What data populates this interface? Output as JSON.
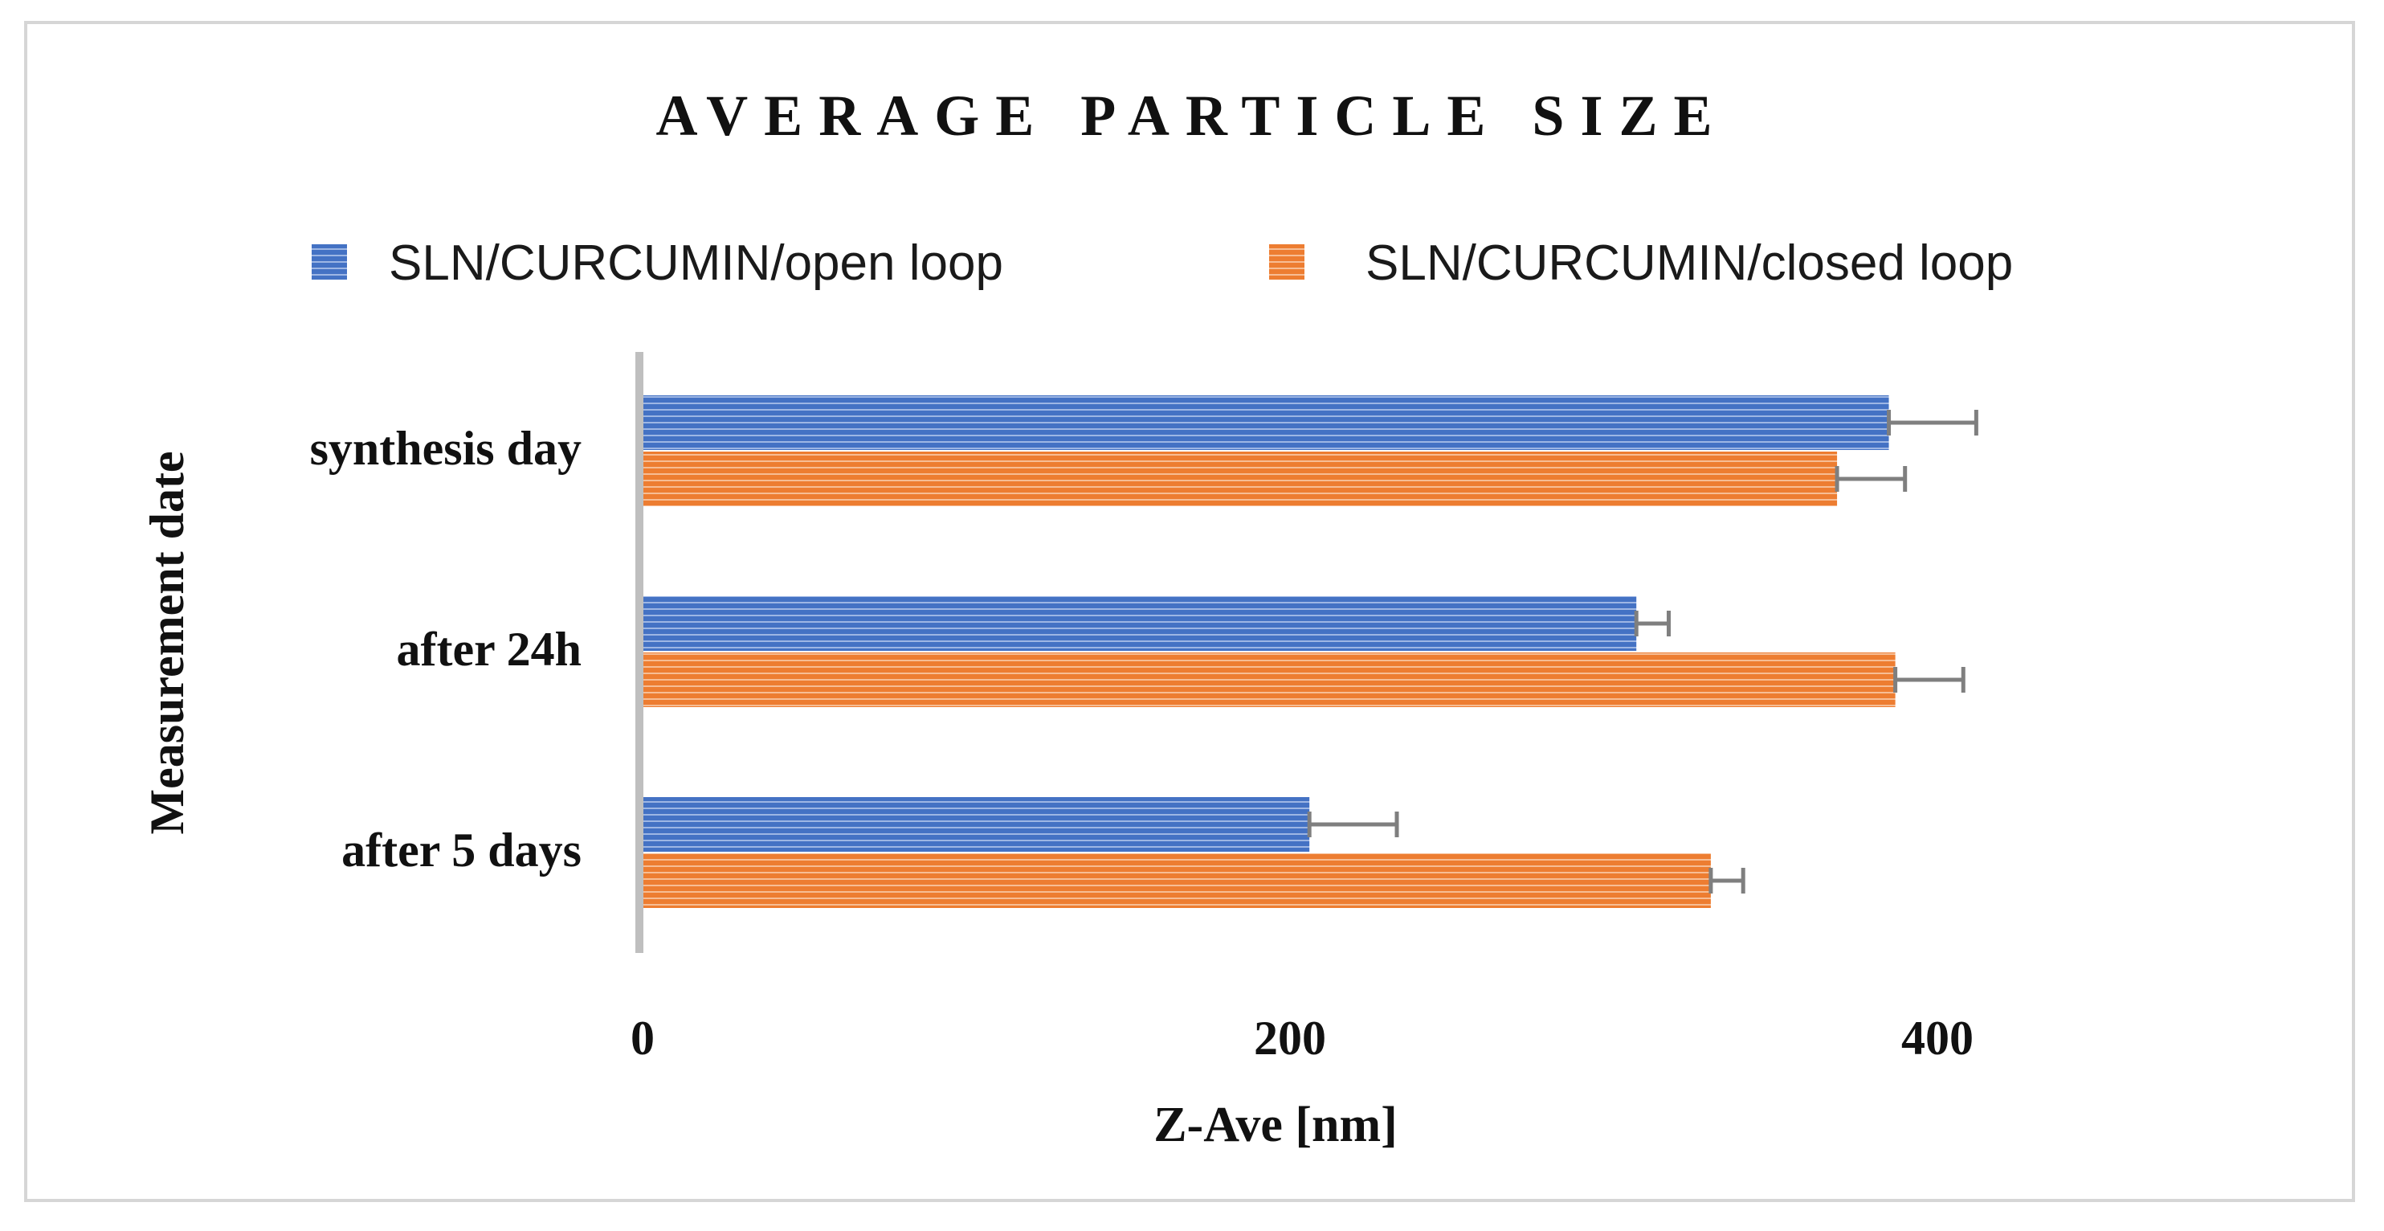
{
  "chart_data": {
    "type": "bar",
    "orientation": "horizontal",
    "title": "AVERAGE PARTICLE SIZE",
    "xlabel": "Z-Ave [nm]",
    "ylabel": "Measurement date",
    "xlim": [
      0,
      400
    ],
    "xticks": [
      0,
      200,
      400
    ],
    "categories": [
      "synthesis day",
      "after 24h",
      "after 5 days"
    ],
    "series": [
      {
        "name": "SLN/CURCUMIN/open loop",
        "color": "#4472C4",
        "values": [
          385,
          307,
          206
        ],
        "errors": [
          27,
          10,
          27
        ]
      },
      {
        "name": "SLN/CURCUMIN/closed loop",
        "color": "#ED7D31",
        "values": [
          369,
          387,
          330
        ],
        "errors": [
          21,
          21,
          10
        ]
      }
    ],
    "legend": "top",
    "grid": false
  }
}
